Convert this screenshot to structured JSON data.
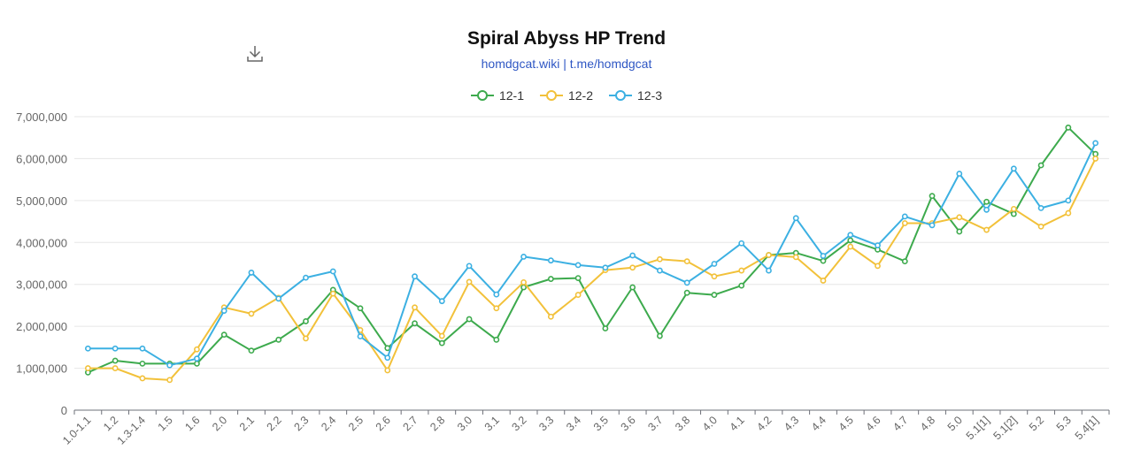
{
  "toolbar": {
    "download_icon": "download-icon"
  },
  "chart_data": {
    "type": "line",
    "title": "Spiral Abyss HP Trend",
    "subtitle": "homdgcat.wiki | t.me/homdgcat",
    "legend_position": "top-center",
    "grid": true,
    "ylim": [
      0,
      7000000
    ],
    "y_ticks": [
      "0",
      "1,000,000",
      "2,000,000",
      "3,000,000",
      "4,000,000",
      "5,000,000",
      "6,000,000",
      "7,000,000"
    ],
    "categories": [
      "1.0-1.1",
      "1.2",
      "1.3-1.4",
      "1.5",
      "1.6",
      "2.0",
      "2.1",
      "2.2",
      "2.3",
      "2.4",
      "2.5",
      "2.6",
      "2.7",
      "2.8",
      "3.0",
      "3.1",
      "3.2",
      "3.3",
      "3.4",
      "3.5",
      "3.6",
      "3.7",
      "3.8",
      "4.0",
      "4.1",
      "4.2",
      "4.3",
      "4.4",
      "4.5",
      "4.6",
      "4.7",
      "4.8",
      "5.0",
      "5.1[1]",
      "5.1[2]",
      "5.2",
      "5.3",
      "5.4[1]"
    ],
    "series": [
      {
        "name": "12-1",
        "color": "#3daa4d",
        "values": [
          900000,
          1180000,
          1110000,
          1110000,
          1110000,
          1800000,
          1420000,
          1680000,
          2120000,
          2870000,
          2430000,
          1480000,
          2070000,
          1600000,
          2170000,
          1680000,
          2930000,
          3130000,
          3150000,
          1950000,
          2930000,
          1770000,
          2800000,
          2750000,
          2970000,
          3700000,
          3750000,
          3560000,
          4050000,
          3830000,
          3550000,
          5110000,
          4260000,
          4970000,
          4680000,
          5840000,
          6740000,
          6110000
        ]
      },
      {
        "name": "12-2",
        "color": "#f2c13a",
        "values": [
          1000000,
          1000000,
          760000,
          720000,
          1450000,
          2450000,
          2300000,
          2680000,
          1710000,
          2780000,
          1910000,
          950000,
          2450000,
          1770000,
          3060000,
          2430000,
          3050000,
          2230000,
          2750000,
          3340000,
          3400000,
          3600000,
          3550000,
          3190000,
          3330000,
          3700000,
          3650000,
          3090000,
          3900000,
          3440000,
          4460000,
          4460000,
          4600000,
          4300000,
          4800000,
          4380000,
          4700000,
          6000000
        ]
      },
      {
        "name": "12-3",
        "color": "#3cb0e2",
        "values": [
          1470000,
          1470000,
          1470000,
          1070000,
          1230000,
          2370000,
          3280000,
          2660000,
          3160000,
          3310000,
          1760000,
          1250000,
          3190000,
          2600000,
          3440000,
          2760000,
          3660000,
          3570000,
          3460000,
          3400000,
          3690000,
          3330000,
          3040000,
          3490000,
          3980000,
          3330000,
          4580000,
          3680000,
          4180000,
          3930000,
          4620000,
          4410000,
          5640000,
          4780000,
          5760000,
          4820000,
          5000000,
          6370000
        ]
      }
    ]
  }
}
